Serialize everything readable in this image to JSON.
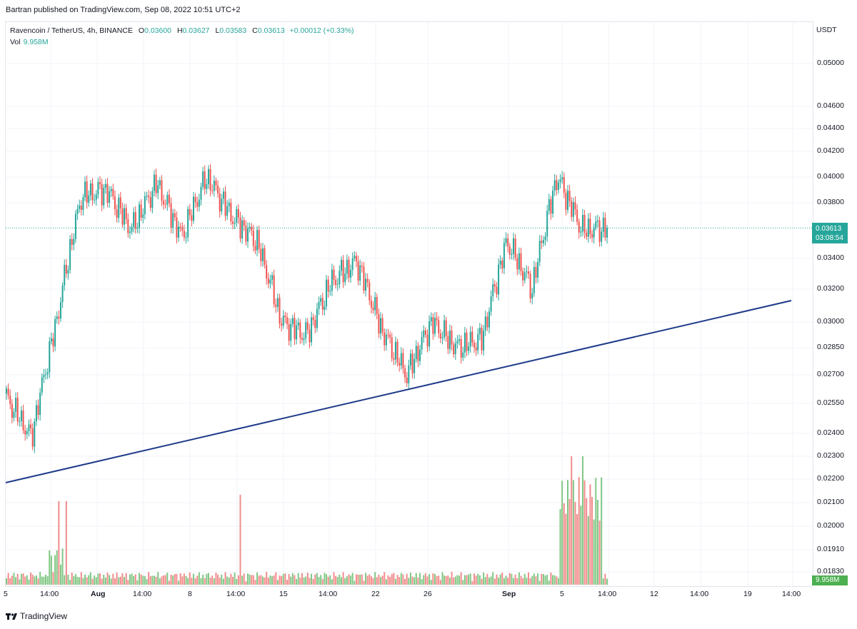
{
  "header": {
    "published": "Bartran published on TradingView.com, Sep 08, 2022 10:51 UTC+2"
  },
  "legend": {
    "symbol": "Ravencoin / TetherUS, 4h, BINANCE",
    "o_label": "O",
    "o": "0.03600",
    "h_label": "H",
    "h": "0.03627",
    "l_label": "L",
    "l": "0.03583",
    "c_label": "C",
    "c": "0.03613",
    "change": "+0.00012 (+0.33%)",
    "vol_label": "Vol",
    "vol": "9.958M"
  },
  "price_axis": {
    "currency": "USDT",
    "ticks": [
      "0.05000",
      "0.04600",
      "0.04400",
      "0.04200",
      "0.04000",
      "0.03800",
      "0.03400",
      "0.03200",
      "0.03000",
      "0.02850",
      "0.02700",
      "0.02550",
      "0.02400",
      "0.02300",
      "0.02200",
      "0.02100",
      "0.02000",
      "0.01910",
      "0.01830"
    ],
    "last_price": "0.03613",
    "countdown": "03:08:54",
    "volume_tag": "9.958M"
  },
  "time_axis": {
    "labels": [
      "5",
      "14:00",
      "Aug",
      "14:00",
      "8",
      "14:00",
      "15",
      "14:00",
      "22",
      "26",
      "Sep",
      "5",
      "14:00",
      "12",
      "14:00",
      "19",
      "14:00"
    ]
  },
  "footer": {
    "brand": "TradingView"
  },
  "colors": {
    "up": "#26a69a",
    "down": "#ef5350",
    "vol_up": "#81c784",
    "vol_down": "#f28b8b",
    "trendline": "#1e3a8a",
    "price_line": "#26a69a"
  },
  "chart_data": {
    "type": "candlestick",
    "interval": "4h",
    "symbol": "RVNUSDT",
    "y_scale": "log",
    "ylim": [
      0.0183,
      0.053
    ],
    "key_points": [
      {
        "date": "Jul 25",
        "close": 0.0258
      },
      {
        "date": "Jul 26",
        "close": 0.0238
      },
      {
        "date": "Jul 27",
        "close": 0.03
      },
      {
        "date": "Jul 28",
        "close": 0.0385
      },
      {
        "date": "Jul 29",
        "close": 0.039
      },
      {
        "date": "Jul 30",
        "close": 0.036
      },
      {
        "date": "Aug 02",
        "close": 0.0395
      },
      {
        "date": "Aug 04",
        "close": 0.0355
      },
      {
        "date": "Aug 06",
        "close": 0.04
      },
      {
        "date": "Aug 09",
        "close": 0.037
      },
      {
        "date": "Aug 11",
        "close": 0.0352
      },
      {
        "date": "Aug 13",
        "close": 0.03
      },
      {
        "date": "Aug 15",
        "close": 0.0292
      },
      {
        "date": "Aug 19",
        "close": 0.0325
      },
      {
        "date": "Aug 22",
        "close": 0.0338
      },
      {
        "date": "Aug 24",
        "close": 0.0295
      },
      {
        "date": "Aug 26",
        "close": 0.027
      },
      {
        "date": "Aug 28",
        "close": 0.03
      },
      {
        "date": "Aug 30",
        "close": 0.0285
      },
      {
        "date": "Sep 02",
        "close": 0.029
      },
      {
        "date": "Sep 04",
        "close": 0.0352
      },
      {
        "date": "Sep 05",
        "close": 0.032
      },
      {
        "date": "Sep 06",
        "close": 0.04
      },
      {
        "date": "Sep 07",
        "close": 0.036
      },
      {
        "date": "Sep 08",
        "close": 0.03613
      }
    ],
    "trendline": {
      "from": {
        "date": "Jul 24",
        "price": 0.0224
      },
      "to": {
        "date": "Sep 18",
        "price": 0.0315
      }
    },
    "volume": {
      "last": "9.958M"
    }
  }
}
